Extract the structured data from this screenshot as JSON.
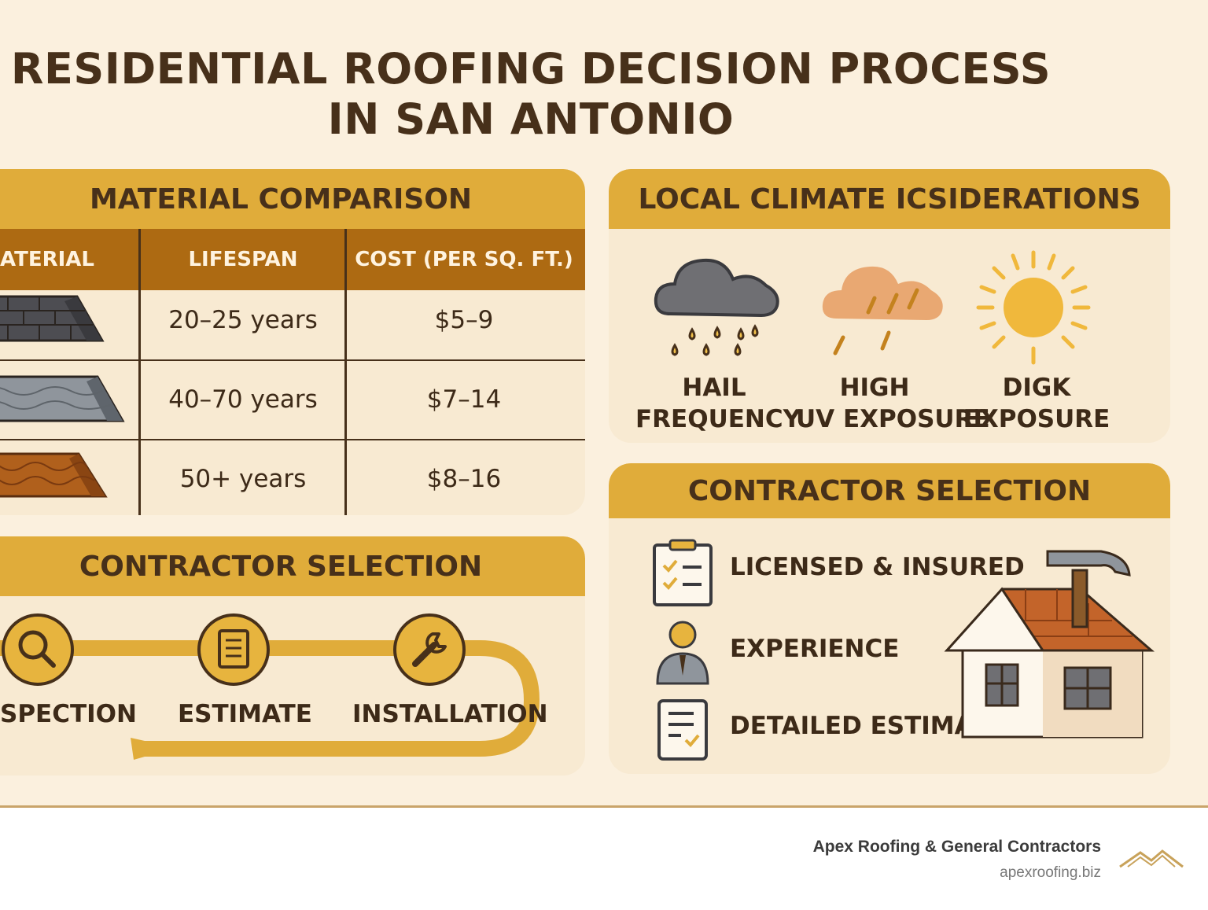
{
  "title": {
    "line1": "RESIDENTIAL ROOFING DECISION PROCESS",
    "line2": "IN SAN ANTONIO"
  },
  "material_comparison": {
    "heading": "MATERIAL COMPARISON",
    "columns": [
      "ATERIAL",
      "LIFESPAN",
      "COST (PER SQ. FT.)"
    ],
    "rows": [
      {
        "icon": "asphalt-shingle-roof-icon",
        "lifespan": "20–25 years",
        "cost": "$5–9"
      },
      {
        "icon": "metal-roof-icon",
        "lifespan": "40–70 years",
        "cost": "$7–14"
      },
      {
        "icon": "clay-tile-roof-icon",
        "lifespan": "50+ years",
        "cost": "$8–16"
      }
    ]
  },
  "process": {
    "heading": "CONTRACTOR SELECTION",
    "steps": [
      {
        "icon": "magnifier-icon",
        "label": "SPECTION"
      },
      {
        "icon": "document-icon",
        "label": "ESTIMATE"
      },
      {
        "icon": "wrench-icon",
        "label": "INSTALLATION"
      }
    ]
  },
  "climate": {
    "heading": "LOCAL CLIMATE ICSIDERATIONS",
    "items": [
      {
        "icon": "hail-cloud-icon",
        "line1": "HAIL",
        "line2": "FREQUENCY"
      },
      {
        "icon": "storm-cloud-icon",
        "line1": "HIGH",
        "line2": "UV EXPOSURE"
      },
      {
        "icon": "sun-icon",
        "line1": "DIGK",
        "line2": "EXPOSURE"
      }
    ]
  },
  "contractor": {
    "heading": "CONTRACTOR SELECTION",
    "items": [
      {
        "icon": "clipboard-checklist-icon",
        "label": "LICENSED & INSURED"
      },
      {
        "icon": "person-icon",
        "label": "EXPERIENCE"
      },
      {
        "icon": "estimate-document-icon",
        "label": "DETAILED ESTIMATE"
      }
    ]
  },
  "footer": {
    "brand": "Apex Roofing & General Contractors",
    "website": "apexroofing.biz"
  },
  "colors": {
    "background": "#fbf0de",
    "gold": "#e0ac3a",
    "brown_header": "#ad6a12",
    "dark_text": "#47301a"
  }
}
